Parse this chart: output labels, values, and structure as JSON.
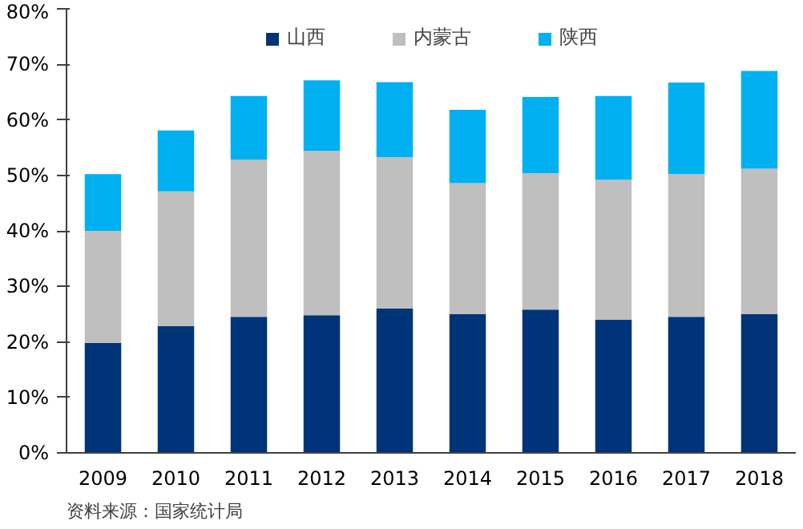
{
  "chart_data": {
    "type": "bar",
    "stacked": true,
    "categories": [
      "2009",
      "2010",
      "2011",
      "2012",
      "2013",
      "2014",
      "2015",
      "2016",
      "2017",
      "2018"
    ],
    "series": [
      {
        "name": "山西",
        "color": "#003478",
        "values": [
          19.8,
          22.8,
          24.5,
          24.8,
          26,
          25,
          25.8,
          24,
          24.5,
          25
        ]
      },
      {
        "name": "内蒙古",
        "color": "#bfbfbf",
        "values": [
          20.2,
          24.3,
          28.3,
          29.6,
          27.3,
          23.6,
          24.6,
          25.2,
          25.7,
          26.2
        ]
      },
      {
        "name": "陕西",
        "color": "#00b0f0",
        "values": [
          10.2,
          11,
          11.5,
          12.7,
          13.5,
          13.2,
          13.7,
          15.1,
          16.5,
          17.6
        ]
      }
    ],
    "ylim": [
      0,
      80
    ],
    "yticks": [
      {
        "value": 0,
        "label": "0%"
      },
      {
        "value": 10,
        "label": "10%"
      },
      {
        "value": 20,
        "label": "20%"
      },
      {
        "value": 30,
        "label": "30%"
      },
      {
        "value": 40,
        "label": "40%"
      },
      {
        "value": 50,
        "label": "50%"
      },
      {
        "value": 60,
        "label": "60%"
      },
      {
        "value": 70,
        "label": "70%"
      },
      {
        "value": 80,
        "label": "80%"
      }
    ],
    "grid": false,
    "legend": "top",
    "annotations": [
      "资料来源：国家统计局"
    ]
  }
}
